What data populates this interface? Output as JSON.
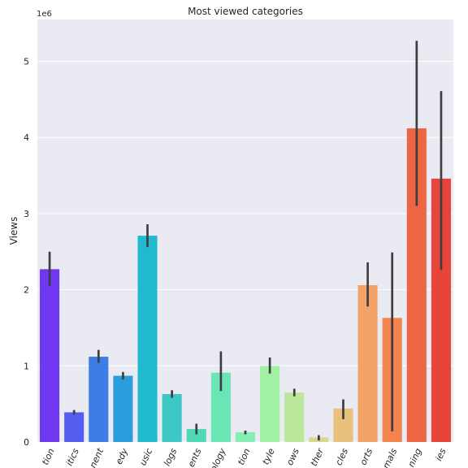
{
  "chart_data": {
    "type": "bar",
    "title": "Most viewed categories",
    "xlabel": "",
    "ylabel": "Views",
    "y_offset_label": "1e6",
    "y_scale": 1000000,
    "ylim": [
      0,
      5.55
    ],
    "yticks": [
      0,
      1,
      2,
      3,
      4,
      5
    ],
    "ytick_labels": [
      "0",
      "1",
      "2",
      "3",
      "4",
      "5"
    ],
    "grid": true,
    "categories": [
      "tion",
      "itics",
      "nent",
      "edy",
      "usic",
      "logs",
      "ents",
      "ology",
      "tion",
      "tyle",
      "ows",
      "ther",
      "cles",
      "orts",
      "mals",
      "ning",
      "ies"
    ],
    "values": [
      2.27,
      0.39,
      1.12,
      0.87,
      2.71,
      0.63,
      0.17,
      0.91,
      0.13,
      1.0,
      0.65,
      0.06,
      0.44,
      2.06,
      1.63,
      4.12,
      3.46
    ],
    "error_low": [
      2.05,
      0.36,
      1.04,
      0.82,
      2.56,
      0.58,
      0.1,
      0.67,
      0.1,
      0.9,
      0.6,
      0.02,
      0.3,
      1.78,
      0.14,
      3.1,
      2.26
    ],
    "error_high": [
      2.5,
      0.42,
      1.21,
      0.92,
      2.86,
      0.68,
      0.24,
      1.19,
      0.15,
      1.11,
      0.7,
      0.09,
      0.56,
      2.36,
      2.49,
      5.27,
      4.61
    ],
    "colors": [
      "#7038f0",
      "#555cf0",
      "#3c7ee6",
      "#2a9edc",
      "#21b9cf",
      "#3dc8c5",
      "#4fd8b5",
      "#6ae6b6",
      "#86efb6",
      "#a0f1a4",
      "#bce79b",
      "#d8d792",
      "#e8c27d",
      "#f3a268",
      "#f3844e",
      "#ee6544",
      "#e8453a"
    ]
  }
}
